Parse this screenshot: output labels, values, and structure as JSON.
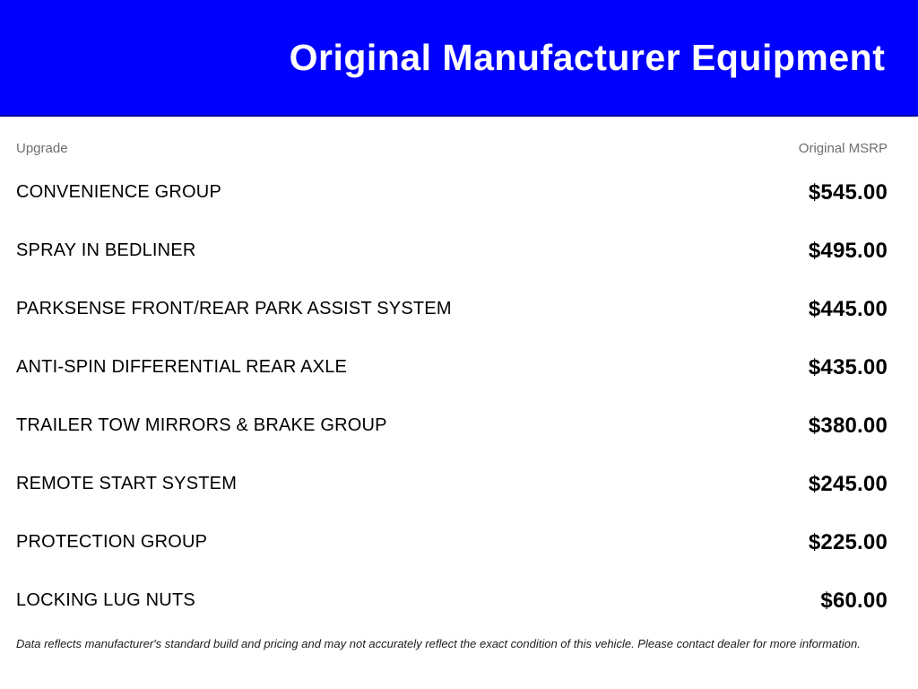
{
  "header": {
    "title": "Original Manufacturer Equipment",
    "background_color": "#0000ff",
    "border_color": "#0000a0",
    "text_color": "#ffffff"
  },
  "table": {
    "columns": {
      "upgrade": "Upgrade",
      "msrp": "Original MSRP"
    },
    "rows": [
      {
        "label": "CONVENIENCE GROUP",
        "price": "$545.00"
      },
      {
        "label": "SPRAY IN BEDLINER",
        "price": "$495.00"
      },
      {
        "label": "PARKSENSE FRONT/REAR PARK ASSIST SYSTEM",
        "price": "$445.00"
      },
      {
        "label": "ANTI-SPIN DIFFERENTIAL REAR AXLE",
        "price": "$435.00"
      },
      {
        "label": "TRAILER TOW MIRRORS & BRAKE GROUP",
        "price": "$380.00"
      },
      {
        "label": "REMOTE START SYSTEM",
        "price": "$245.00"
      },
      {
        "label": "PROTECTION GROUP",
        "price": "$225.00"
      },
      {
        "label": "LOCKING LUG NUTS",
        "price": "$60.00"
      }
    ]
  },
  "disclaimer": "Data reflects manufacturer's standard build and pricing and may not accurately reflect the exact condition of this vehicle. Please contact dealer for more information."
}
